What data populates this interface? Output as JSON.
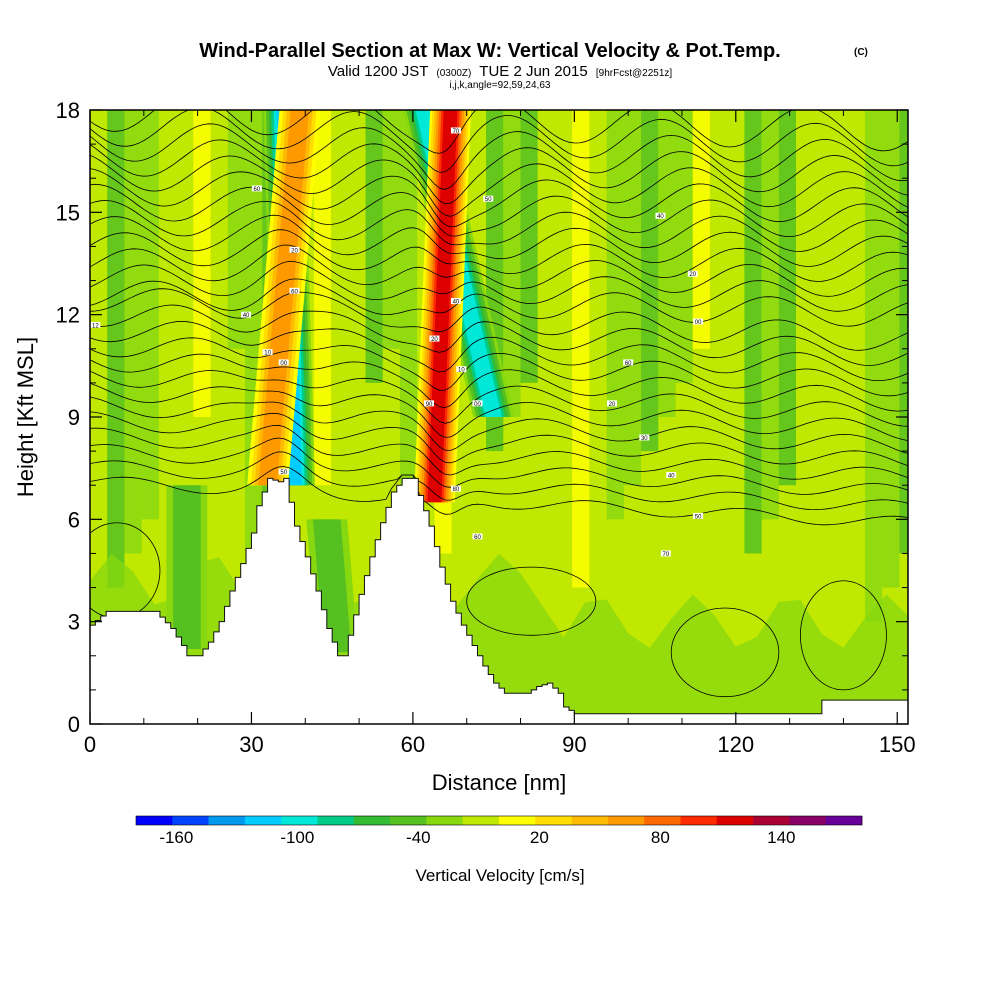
{
  "chart_data": {
    "type": "heatmap",
    "title": "Wind-Parallel Section at Max W: Vertical Velocity & Pot.Temp.",
    "title_mark": "(C)",
    "subtitle_main": "Valid 1200 JST",
    "subtitle_utc": "(0300Z)",
    "subtitle_date": "TUE 2 Jun 2015",
    "subtitle_fcst": "[9hrFcst@2251z]",
    "subtitle_indices": "i,j,k,angle=92,59,24,63",
    "xlabel": "Distance [nm]",
    "ylabel": "Height [Kft MSL]",
    "xlim": [
      0,
      152
    ],
    "ylim": [
      0,
      18
    ],
    "x_ticks": [
      0,
      30,
      60,
      90,
      120,
      150
    ],
    "y_ticks": [
      0,
      3,
      6,
      9,
      12,
      15,
      18
    ],
    "colorbar": {
      "label": "Vertical Velocity [cm/s]",
      "range": [
        -180,
        180
      ],
      "bin_width": 20,
      "tick_values": [
        -160,
        -100,
        -40,
        20,
        80,
        140
      ],
      "tick_labels": [
        "-160",
        "-100",
        "-40",
        "20",
        "80",
        "140"
      ],
      "colors": [
        "#0000ff",
        "#0044ff",
        "#0099ee",
        "#00ccff",
        "#00e8d8",
        "#00cc88",
        "#33bb33",
        "#55c020",
        "#88d810",
        "#c0e800",
        "#ffff00",
        "#ffdd00",
        "#ffbb00",
        "#ff9900",
        "#ff6a00",
        "#ff2a00",
        "#dd0000",
        "#aa0033",
        "#880066",
        "#660099"
      ]
    },
    "terrain_profile": {
      "x": [
        0,
        3,
        12,
        15,
        17,
        18,
        20,
        22,
        24,
        26,
        28,
        30,
        31,
        33,
        35,
        36,
        37,
        38,
        40,
        42,
        44,
        46,
        47,
        48,
        50,
        52,
        54,
        56,
        58,
        60,
        61,
        63,
        65,
        67,
        69,
        71,
        73,
        75,
        77,
        79,
        81,
        83,
        85,
        87,
        88,
        90,
        135,
        136,
        152
      ],
      "height": [
        2.9,
        3.3,
        3.3,
        2.8,
        2.3,
        2.0,
        2.0,
        2.4,
        3.0,
        3.9,
        4.7,
        5.6,
        6.4,
        7.2,
        7.1,
        7.2,
        6.5,
        5.8,
        4.9,
        3.9,
        2.8,
        2.0,
        2.0,
        2.6,
        3.8,
        4.9,
        5.9,
        6.8,
        7.2,
        7.2,
        6.7,
        5.8,
        4.6,
        3.6,
        2.9,
        2.3,
        1.7,
        1.2,
        0.9,
        0.9,
        0.9,
        1.1,
        1.2,
        0.9,
        0.5,
        0.3,
        0.3,
        0.7,
        0.7
      ]
    },
    "features": [
      {
        "x_start": 38,
        "h_bottom": 7.0,
        "x_end": 36,
        "h_top": 18,
        "peak_w": -120
      },
      {
        "x_start": 75,
        "h_bottom": 9.0,
        "x_end": 62,
        "h_top": 18,
        "peak_w": -110
      },
      {
        "x_start": 64,
        "h_bottom": 6.5,
        "x_end": 67,
        "h_top": 18,
        "peak_w": 140
      },
      {
        "x_start": 33,
        "h_bottom": 7.0,
        "x_end": 39,
        "h_top": 18,
        "peak_w": 80
      },
      {
        "x_start": 18,
        "h_bottom": 2.2,
        "x_end": 18,
        "h_top": 7.0,
        "peak_w": -40
      },
      {
        "x_start": 46,
        "h_bottom": 2.1,
        "x_end": 44,
        "h_top": 6.0,
        "peak_w": -40
      }
    ],
    "isentropes": {
      "count": 26,
      "base_height": 6.5,
      "top_height": 17.7
    },
    "contour_labels": [
      {
        "x": 1,
        "h": 11.7,
        "text": "12"
      },
      {
        "x": 31,
        "h": 15.7,
        "text": "60"
      },
      {
        "x": 29,
        "h": 12.0,
        "text": "40"
      },
      {
        "x": 33,
        "h": 10.9,
        "text": "10"
      },
      {
        "x": 36,
        "h": 10.6,
        "text": "00"
      },
      {
        "x": 38,
        "h": 13.9,
        "text": "20"
      },
      {
        "x": 38,
        "h": 12.7,
        "text": "60"
      },
      {
        "x": 36,
        "h": 7.4,
        "text": "50"
      },
      {
        "x": 68,
        "h": 17.4,
        "text": "70"
      },
      {
        "x": 74,
        "h": 15.4,
        "text": "50"
      },
      {
        "x": 68,
        "h": 12.4,
        "text": "40"
      },
      {
        "x": 64,
        "h": 11.3,
        "text": "20"
      },
      {
        "x": 69,
        "h": 10.4,
        "text": "10"
      },
      {
        "x": 72,
        "h": 9.4,
        "text": "00"
      },
      {
        "x": 63,
        "h": 9.4,
        "text": "90"
      },
      {
        "x": 68,
        "h": 6.9,
        "text": "80"
      },
      {
        "x": 72,
        "h": 5.5,
        "text": "60"
      },
      {
        "x": 106,
        "h": 14.9,
        "text": "40"
      },
      {
        "x": 112,
        "h": 13.2,
        "text": "20"
      },
      {
        "x": 113,
        "h": 11.8,
        "text": "00"
      },
      {
        "x": 100,
        "h": 10.6,
        "text": "60"
      },
      {
        "x": 97,
        "h": 9.4,
        "text": "20"
      },
      {
        "x": 103,
        "h": 8.4,
        "text": "30"
      },
      {
        "x": 108,
        "h": 7.3,
        "text": "40"
      },
      {
        "x": 113,
        "h": 6.1,
        "text": "50"
      },
      {
        "x": 107,
        "h": 5.0,
        "text": "70"
      }
    ]
  }
}
